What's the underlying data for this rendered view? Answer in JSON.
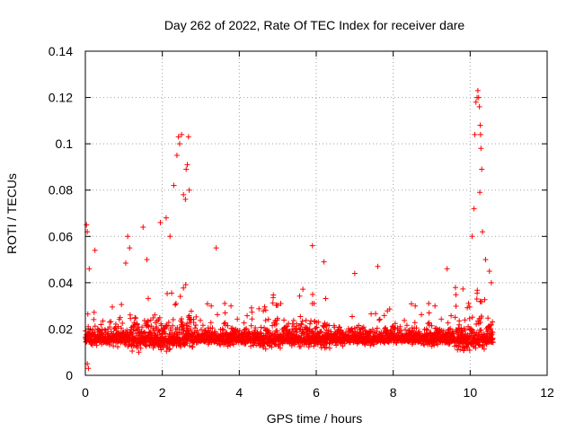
{
  "chart_data": {
    "type": "scatter",
    "title": "Day 262 of 2022, Rate Of TEC Index for receiver dare",
    "xlabel": "GPS time / hours",
    "ylabel": "ROTI / TECUs",
    "xlim": [
      0,
      12
    ],
    "ylim": [
      0,
      0.14
    ],
    "xticks": [
      0,
      2,
      4,
      6,
      8,
      10,
      12
    ],
    "yticks": [
      0,
      0.02,
      0.04,
      0.06,
      0.08,
      0.1,
      0.12,
      0.14
    ],
    "xtick_labels": [
      "0",
      "2",
      "4",
      "6",
      "8",
      "10",
      "12"
    ],
    "ytick_labels": [
      "0",
      "0.02",
      "0.04",
      "0.06",
      "0.08",
      "0.1",
      "0.12",
      "0.14"
    ],
    "grid": true,
    "marker": "+",
    "color": "#ff0000",
    "series": [
      {
        "name": "ROTI",
        "x_range": [
          0,
          10.6
        ],
        "baseline_median": 0.016,
        "notable_points": [
          {
            "x": 0.03,
            "y": 0.065
          },
          {
            "x": 0.05,
            "y": 0.062
          },
          {
            "x": 0.1,
            "y": 0.046
          },
          {
            "x": 0.25,
            "y": 0.054
          },
          {
            "x": 0.05,
            "y": 0.005
          },
          {
            "x": 0.08,
            "y": 0.003
          },
          {
            "x": 1.1,
            "y": 0.06
          },
          {
            "x": 1.15,
            "y": 0.055
          },
          {
            "x": 1.5,
            "y": 0.064
          },
          {
            "x": 1.6,
            "y": 0.05
          },
          {
            "x": 1.95,
            "y": 0.066
          },
          {
            "x": 2.1,
            "y": 0.068
          },
          {
            "x": 2.2,
            "y": 0.06
          },
          {
            "x": 2.3,
            "y": 0.082
          },
          {
            "x": 2.38,
            "y": 0.095
          },
          {
            "x": 2.42,
            "y": 0.103
          },
          {
            "x": 2.45,
            "y": 0.1
          },
          {
            "x": 2.5,
            "y": 0.104
          },
          {
            "x": 2.55,
            "y": 0.078
          },
          {
            "x": 2.6,
            "y": 0.076
          },
          {
            "x": 2.62,
            "y": 0.089
          },
          {
            "x": 2.65,
            "y": 0.091
          },
          {
            "x": 2.68,
            "y": 0.103
          },
          {
            "x": 2.7,
            "y": 0.08
          },
          {
            "x": 3.4,
            "y": 0.055
          },
          {
            "x": 5.9,
            "y": 0.056
          },
          {
            "x": 6.2,
            "y": 0.049
          },
          {
            "x": 7.0,
            "y": 0.044
          },
          {
            "x": 7.6,
            "y": 0.047
          },
          {
            "x": 9.4,
            "y": 0.046
          },
          {
            "x": 10.05,
            "y": 0.06
          },
          {
            "x": 10.1,
            "y": 0.072
          },
          {
            "x": 10.12,
            "y": 0.104
          },
          {
            "x": 10.15,
            "y": 0.118
          },
          {
            "x": 10.18,
            "y": 0.12
          },
          {
            "x": 10.2,
            "y": 0.123
          },
          {
            "x": 10.22,
            "y": 0.12
          },
          {
            "x": 10.24,
            "y": 0.116
          },
          {
            "x": 10.26,
            "y": 0.108
          },
          {
            "x": 10.27,
            "y": 0.104
          },
          {
            "x": 10.28,
            "y": 0.098
          },
          {
            "x": 10.3,
            "y": 0.089
          },
          {
            "x": 10.25,
            "y": 0.079
          },
          {
            "x": 10.32,
            "y": 0.062
          },
          {
            "x": 10.4,
            "y": 0.05
          },
          {
            "x": 10.5,
            "y": 0.045
          },
          {
            "x": 10.55,
            "y": 0.04
          }
        ]
      }
    ]
  }
}
